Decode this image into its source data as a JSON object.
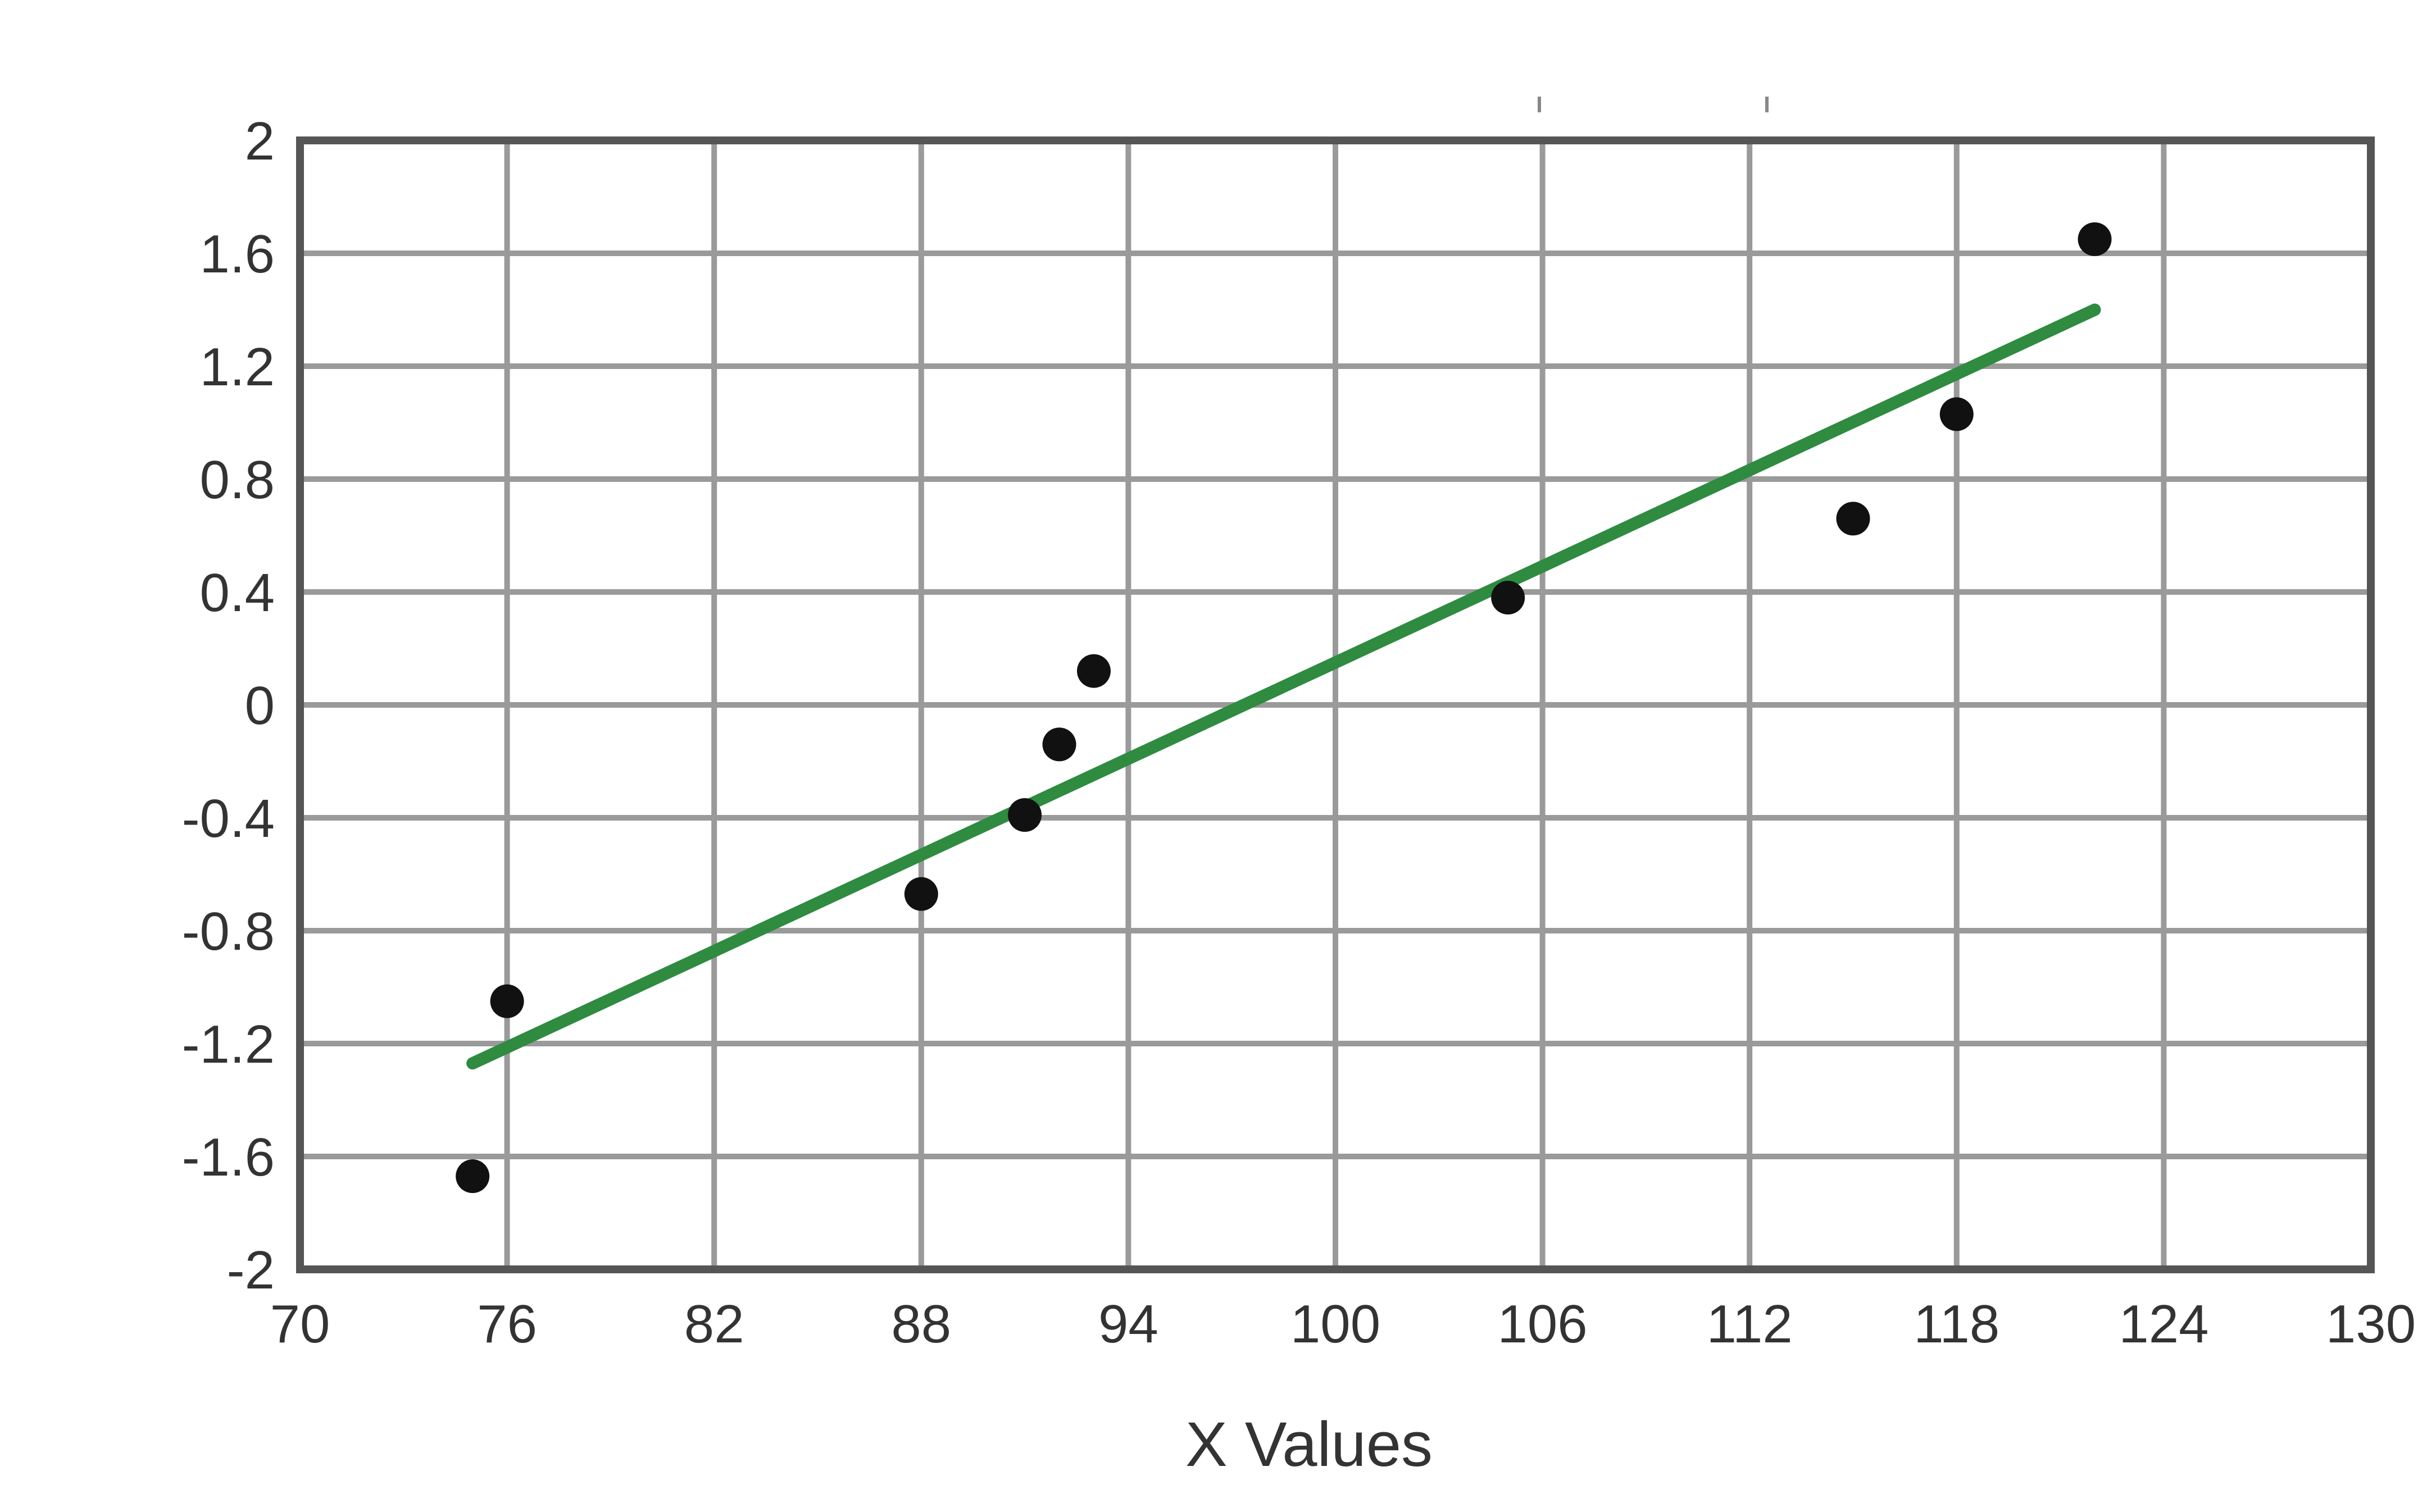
{
  "chart_data": {
    "type": "scatter",
    "title": "",
    "xlabel": "X Values",
    "ylabel": "",
    "xlim": [
      70,
      130
    ],
    "ylim": [
      -2,
      2
    ],
    "x_ticks": [
      70,
      76,
      82,
      88,
      94,
      100,
      106,
      112,
      118,
      124,
      130
    ],
    "x_tick_labels": [
      "70",
      "76",
      "82",
      "88",
      "94",
      "100",
      "106",
      "112",
      "118",
      "124",
      "130"
    ],
    "y_ticks": [
      2,
      1.6,
      1.2,
      0.8,
      0.4,
      0,
      -0.4,
      -0.8,
      -1.2,
      -1.6,
      -2
    ],
    "y_tick_labels": [
      "2",
      "1.6",
      "1.2",
      "0.8",
      "0.4",
      "0",
      "-0.4",
      "-0.8",
      "-1.2",
      "-1.6",
      "-2"
    ],
    "grid": true,
    "legend": "none",
    "colors": {
      "points": "#111111",
      "trend": "#2e8b40",
      "grid": "#9a9a9a"
    },
    "series": [
      {
        "type": "scatter",
        "points": [
          [
            75,
            -1.67
          ],
          [
            76,
            -1.05
          ],
          [
            88,
            -0.67
          ],
          [
            91,
            -0.39
          ],
          [
            92,
            -0.14
          ],
          [
            93,
            0.12
          ],
          [
            105,
            0.38
          ],
          [
            115,
            0.66
          ],
          [
            118,
            1.03
          ],
          [
            122,
            1.65
          ]
        ]
      },
      {
        "type": "line",
        "points": [
          [
            75,
            -1.27
          ],
          [
            122,
            1.4
          ]
        ]
      }
    ]
  }
}
